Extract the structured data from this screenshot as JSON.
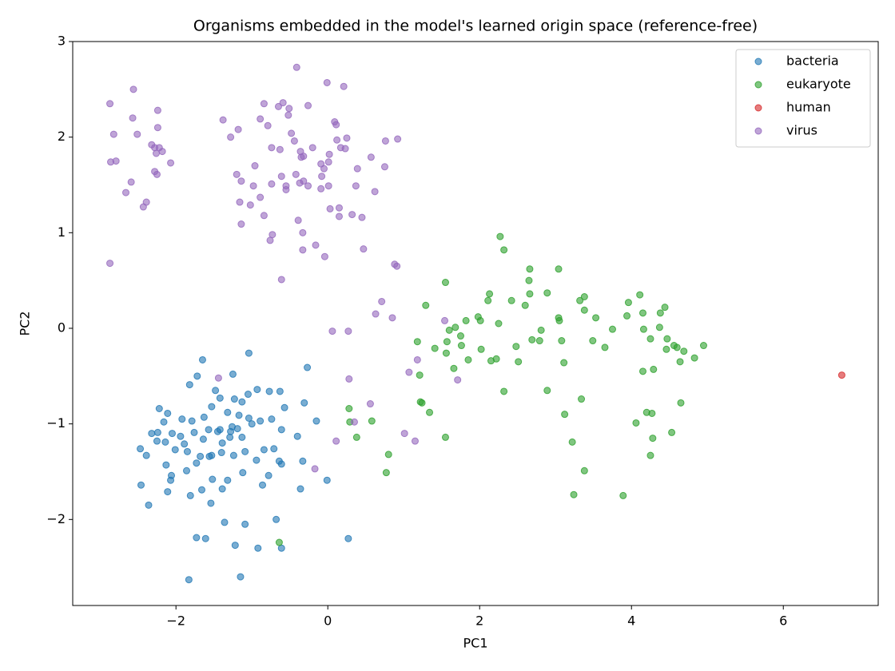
{
  "chart_data": {
    "type": "scatter",
    "title": "Organisms embedded in the model's learned origin space (reference-free)",
    "x_label": "PC1",
    "y_label": "PC2",
    "xlim": [
      -3.36,
      7.25
    ],
    "ylim": [
      -2.9,
      3.0
    ],
    "xticks": [
      {
        "value": -2,
        "label": "−2"
      },
      0,
      2,
      4,
      6
    ],
    "yticks": [
      {
        "value": -2,
        "label": "−2"
      },
      {
        "value": -1,
        "label": "−1"
      },
      0,
      1,
      2,
      3
    ],
    "legend": "upper right",
    "series": [
      {
        "name": "bacteria",
        "color": "#1f77b4",
        "x": [
          -1.65,
          -1.04,
          -0.27,
          -1.82,
          -1.72,
          -1.48,
          -1.25,
          -0.93,
          -0.77,
          -0.63,
          -0.57,
          -0.31,
          -1.05,
          -1.13,
          -1.42,
          -1.23,
          -1.53,
          -1.32,
          -1.17,
          -1.04,
          -0.89,
          -0.74,
          -1.0,
          -1.26,
          -1.45,
          -1.63,
          -1.79,
          -1.92,
          -2.11,
          -2.22,
          -2.24,
          -2.16,
          -2.05,
          -1.94,
          -1.89,
          -1.76,
          -1.64,
          -1.57,
          -1.42,
          -1.29,
          -1.19,
          -1.13,
          -1.28,
          -1.39,
          -1.53,
          -1.68,
          -1.85,
          -2.01,
          -2.14,
          -2.32,
          -2.47,
          -2.39,
          -2.25,
          -2.13,
          -2.06,
          -2.07,
          -1.86,
          -1.73,
          -1.56,
          -1.4,
          -1.24,
          -1.09,
          -0.94,
          -0.84,
          -0.71,
          -0.61,
          -0.4,
          -0.33,
          -0.61,
          -0.78,
          -0.86,
          -1.12,
          -1.32,
          -1.39,
          -1.52,
          -1.66,
          -1.81,
          -2.11,
          -2.46,
          -2.36,
          -1.54,
          -1.36,
          -1.09,
          -0.68,
          -0.92,
          -1.22,
          -0.61,
          -1.61,
          -1.73,
          -1.83,
          -1.15,
          0.27,
          -0.01,
          -0.36,
          -0.15,
          -0.64
        ],
        "values": [
          -0.33,
          -0.26,
          -0.41,
          -0.59,
          -0.5,
          -0.65,
          -0.48,
          -0.64,
          -0.66,
          -0.66,
          -0.83,
          -0.78,
          -0.69,
          -0.77,
          -0.73,
          -0.74,
          -0.82,
          -0.88,
          -0.91,
          -0.94,
          -0.97,
          -0.95,
          -1.0,
          -1.03,
          -1.08,
          -0.93,
          -0.97,
          -0.95,
          -0.89,
          -0.84,
          -1.09,
          -0.98,
          -1.1,
          -1.13,
          -1.21,
          -1.09,
          -1.16,
          -1.06,
          -1.06,
          -1.14,
          -1.05,
          -1.14,
          -1.08,
          -1.2,
          -1.33,
          -1.34,
          -1.29,
          -1.27,
          -1.19,
          -1.1,
          -1.26,
          -1.33,
          -1.18,
          -1.43,
          -1.54,
          -1.59,
          -1.49,
          -1.41,
          -1.34,
          -1.3,
          -1.33,
          -1.29,
          -1.38,
          -1.27,
          -1.26,
          -1.06,
          -1.13,
          -1.39,
          -1.42,
          -1.54,
          -1.64,
          -1.51,
          -1.59,
          -1.68,
          -1.58,
          -1.69,
          -1.75,
          -1.71,
          -1.64,
          -1.85,
          -1.83,
          -2.03,
          -2.05,
          -2.0,
          -2.3,
          -2.27,
          -2.3,
          -2.2,
          -2.19,
          -2.63,
          -2.6,
          -2.2,
          -1.59,
          -1.68,
          -0.97,
          -1.39
        ]
      },
      {
        "name": "eukaryote",
        "color": "#2ca02c",
        "x": [
          2.27,
          2.32,
          1.55,
          1.29,
          2.01,
          2.13,
          2.11,
          2.42,
          2.6,
          2.66,
          2.65,
          2.66,
          3.04,
          2.89,
          3.04,
          3.05,
          3.38,
          3.38,
          3.53,
          3.75,
          3.94,
          4.11,
          3.96,
          4.15,
          4.16,
          4.38,
          4.37,
          4.25,
          4.44,
          4.6,
          4.46,
          4.47,
          4.56,
          4.69,
          4.83,
          4.95,
          4.64,
          4.29,
          4.15,
          4.2,
          4.06,
          4.27,
          4.53,
          4.65,
          4.28,
          4.25,
          3.34,
          3.38,
          3.32,
          2.81,
          2.69,
          2.79,
          3.08,
          3.11,
          3.12,
          2.89,
          3.22,
          3.65,
          3.49,
          2.02,
          2.22,
          2.15,
          2.51,
          1.85,
          2.25,
          2.48,
          1.98,
          1.82,
          1.68,
          1.6,
          1.75,
          1.41,
          1.57,
          1.76,
          1.56,
          1.18,
          1.21,
          1.22,
          1.24,
          1.34,
          1.66,
          1.55,
          0.8,
          0.77,
          0.28,
          0.29,
          0.58,
          0.38,
          2.32,
          3.24,
          3.89,
          -0.64
        ],
        "values": [
          0.96,
          0.82,
          0.48,
          0.24,
          0.08,
          0.36,
          0.29,
          0.29,
          0.24,
          0.36,
          0.5,
          0.62,
          0.62,
          0.37,
          0.11,
          0.08,
          0.33,
          0.19,
          0.11,
          -0.01,
          0.13,
          0.35,
          0.27,
          0.16,
          -0.01,
          0.16,
          0.01,
          -0.11,
          0.22,
          -0.2,
          -0.22,
          -0.11,
          -0.18,
          -0.24,
          -0.31,
          -0.18,
          -0.35,
          -0.43,
          -0.45,
          -0.88,
          -0.99,
          -0.89,
          -1.09,
          -0.78,
          -1.15,
          -1.33,
          -0.74,
          -1.49,
          0.29,
          -0.02,
          -0.12,
          -0.13,
          -0.13,
          -0.36,
          -0.9,
          -0.65,
          -1.19,
          -0.2,
          -0.13,
          -0.22,
          -0.32,
          -0.34,
          -0.35,
          -0.33,
          0.05,
          -0.19,
          0.12,
          0.08,
          0.01,
          -0.02,
          -0.08,
          -0.21,
          -0.14,
          -0.18,
          -0.26,
          -0.14,
          -0.49,
          -0.77,
          -0.78,
          -0.88,
          -0.42,
          -1.14,
          -1.32,
          -1.51,
          -0.84,
          -0.98,
          -0.97,
          -1.14,
          -0.66,
          -1.74,
          -1.75,
          -2.24
        ]
      },
      {
        "name": "human",
        "color": "#d62728",
        "x": [
          6.77
        ],
        "values": [
          -0.49
        ]
      },
      {
        "name": "virus",
        "color": "#9467bd",
        "x": [
          -2.87,
          -2.56,
          -2.57,
          -2.82,
          -2.24,
          -2.24,
          -2.32,
          -2.28,
          -2.22,
          -2.18,
          -2.26,
          -2.51,
          -2.07,
          -2.86,
          -2.79,
          -2.59,
          -2.66,
          -2.28,
          -2.25,
          -2.39,
          -2.43,
          -2.87,
          -0.41,
          -0.01,
          0.21,
          -1.38,
          -1.18,
          -1.28,
          -0.84,
          -0.79,
          -0.89,
          -0.65,
          -0.59,
          -0.51,
          -0.26,
          -0.52,
          0.09,
          0.11,
          -0.48,
          -0.44,
          -0.74,
          -0.63,
          -0.36,
          -0.35,
          -0.32,
          -0.2,
          0.02,
          0.12,
          0.17,
          0.25,
          0.23,
          -0.09,
          -0.05,
          -0.08,
          0.01,
          0.01,
          -0.26,
          -0.09,
          0.39,
          0.57,
          0.76,
          0.92,
          0.75,
          0.62,
          0.37,
          -0.42,
          -0.32,
          -0.37,
          -0.55,
          -0.55,
          -0.61,
          -0.96,
          -1.2,
          -1.14,
          -0.98,
          -0.89,
          -0.74,
          -1.02,
          -1.16,
          -0.84,
          -1.14,
          -0.39,
          -0.33,
          -0.73,
          -0.76,
          -0.16,
          -0.33,
          -0.04,
          0.47,
          0.03,
          0.15,
          0.15,
          0.32,
          0.45,
          -0.61,
          0.88,
          0.91,
          0.71,
          0.63,
          0.85,
          0.06,
          0.27,
          1.54,
          1.18,
          1.07,
          1.71,
          0.28,
          -1.44,
          0.35,
          0.56,
          0.11,
          1.01,
          1.15,
          -0.17
        ],
        "values": [
          2.35,
          2.5,
          2.2,
          2.03,
          2.28,
          2.1,
          1.92,
          1.89,
          1.89,
          1.85,
          1.83,
          2.03,
          1.73,
          1.74,
          1.75,
          1.53,
          1.42,
          1.64,
          1.61,
          1.32,
          1.27,
          0.68,
          2.73,
          2.57,
          2.53,
          2.18,
          2.08,
          2.0,
          2.35,
          2.12,
          2.19,
          2.32,
          2.36,
          2.3,
          2.33,
          2.23,
          2.16,
          2.13,
          2.04,
          1.96,
          1.89,
          1.87,
          1.85,
          1.79,
          1.8,
          1.89,
          1.82,
          1.97,
          1.89,
          1.99,
          1.88,
          1.72,
          1.67,
          1.59,
          1.74,
          1.49,
          1.49,
          1.46,
          1.67,
          1.79,
          1.96,
          1.98,
          1.69,
          1.43,
          1.49,
          1.61,
          1.54,
          1.52,
          1.49,
          1.45,
          1.59,
          1.7,
          1.61,
          1.54,
          1.49,
          1.37,
          1.51,
          1.29,
          1.32,
          1.18,
          1.09,
          1.13,
          1.0,
          0.98,
          0.92,
          0.87,
          0.82,
          0.75,
          0.83,
          1.25,
          1.17,
          1.26,
          1.19,
          1.16,
          0.51,
          0.67,
          0.65,
          0.28,
          0.15,
          0.11,
          -0.03,
          -0.03,
          0.08,
          -0.33,
          -0.46,
          -0.54,
          -0.53,
          -0.52,
          -0.98,
          -0.79,
          -1.18,
          -1.1,
          -1.18,
          -1.47
        ]
      }
    ]
  }
}
